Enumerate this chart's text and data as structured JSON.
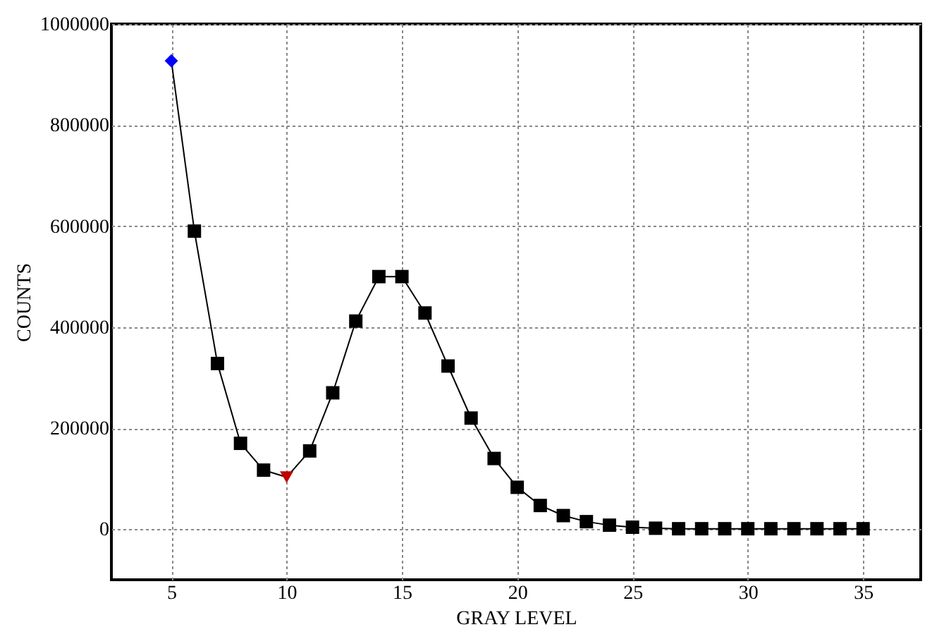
{
  "chart_data": {
    "type": "line",
    "xlabel": "GRAY LEVEL",
    "ylabel": "COUNTS",
    "xlim": [
      2.4,
      37.5
    ],
    "xticks": [
      5,
      10,
      15,
      20,
      25,
      30,
      35
    ],
    "ylim": [
      -100000,
      1000000
    ],
    "yticks": [
      0,
      200000,
      400000,
      600000,
      800000,
      1000000
    ],
    "grid": true,
    "series": [
      {
        "type": "line",
        "color": "#000000",
        "marker": "none",
        "line_style": "solid",
        "x": [
          5,
          6,
          7,
          8,
          9,
          10,
          11,
          12,
          13,
          14,
          15,
          16,
          17,
          18,
          19,
          20,
          21,
          22,
          23,
          24,
          25,
          26,
          27,
          28,
          29,
          30,
          31,
          32,
          33,
          34,
          35
        ],
        "values": [
          927000,
          590000,
          328000,
          170000,
          117000,
          103000,
          155000,
          270000,
          412000,
          500000,
          500000,
          428000,
          323000,
          220000,
          140000,
          83000,
          47000,
          27000,
          15000,
          8000,
          4000,
          2000,
          1000,
          1000,
          1000,
          1000,
          1000,
          1000,
          1000,
          1000,
          1000
        ]
      },
      {
        "type": "scatter",
        "color": "#000000",
        "marker": "square",
        "x": [
          6,
          7,
          8,
          9,
          11,
          12,
          13,
          14,
          15,
          16,
          17,
          18,
          19,
          20,
          21,
          22,
          23,
          24,
          25,
          26,
          27,
          28,
          29,
          30,
          31,
          32,
          33,
          34,
          35
        ],
        "values": [
          590000,
          328000,
          170000,
          117000,
          155000,
          270000,
          412000,
          500000,
          500000,
          428000,
          323000,
          220000,
          140000,
          83000,
          47000,
          27000,
          15000,
          8000,
          4000,
          2000,
          1000,
          1000,
          1000,
          1000,
          1000,
          1000,
          1000,
          1000,
          1000
        ]
      },
      {
        "type": "scatter",
        "color": "#0000ff",
        "marker": "diamond",
        "x": [
          5
        ],
        "values": [
          927000
        ]
      },
      {
        "type": "scatter",
        "color": "#c00000",
        "marker": "triangle",
        "x": [
          10
        ],
        "values": [
          103000
        ]
      }
    ]
  }
}
